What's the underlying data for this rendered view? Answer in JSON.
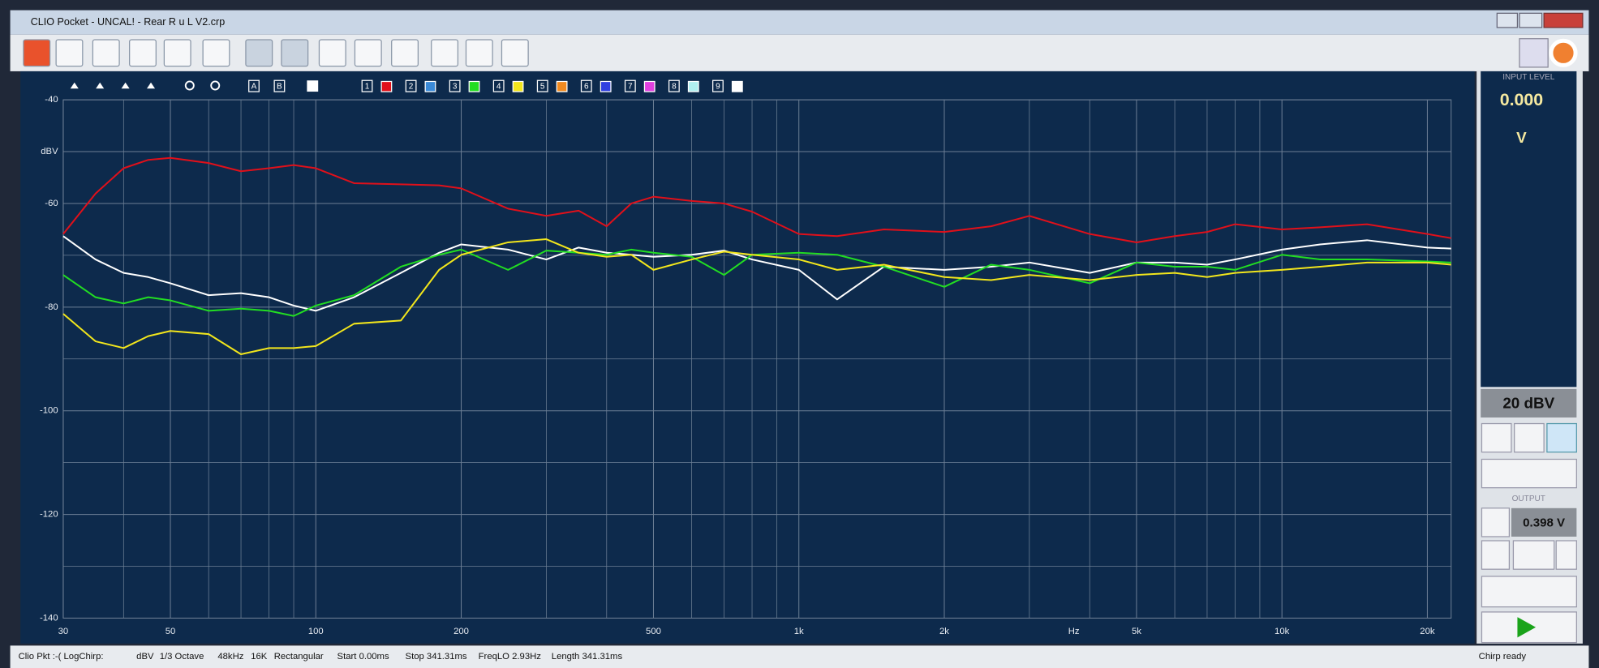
{
  "window_title": "CLIO Pocket - UNCAL! - Rear R u L V2.crp",
  "plot_toolbar": {
    "labels": [
      "A",
      "B"
    ],
    "channels": [
      "1",
      "2",
      "3",
      "4",
      "5",
      "6",
      "7",
      "8",
      "9"
    ]
  },
  "side_panel": {
    "input_label": "INPUT LEVEL",
    "input_value": "0.000",
    "input_unit": "V",
    "range": "20 dBV",
    "output_label": "OUTPUT",
    "output_value": "0.398 V"
  },
  "status_bar": {
    "items": [
      "Clio Pkt :-( LogChirp:",
      "dBV",
      "1/3 Octave",
      "48kHz",
      "16K",
      "Rectangular",
      "Start 0.00ms",
      "Stop 341.31ms",
      "FreqLO 2.93Hz",
      "Length 341.31ms"
    ],
    "state": "Chirp ready"
  },
  "chart_data": {
    "type": "line",
    "x_label": "Hz",
    "log_x": true,
    "grid": true,
    "xlim": [
      30,
      22400
    ],
    "ylim": [
      -140,
      -40
    ],
    "xticks": [
      30,
      50,
      100,
      200,
      500,
      {
        "value": 1000,
        "label": "1k"
      },
      {
        "value": 2000,
        "label": "2k"
      },
      {
        "value": 5000,
        "label": "5k"
      },
      {
        "value": 10000,
        "label": "10k"
      },
      {
        "value": 20000,
        "label": "20k"
      }
    ],
    "xgrid_minor": [
      40,
      60,
      70,
      80,
      90,
      300,
      400,
      600,
      700,
      800,
      900,
      3000,
      4000,
      6000,
      7000,
      8000,
      9000
    ],
    "yticks": [
      -40,
      {
        "value": -50,
        "label": "dBV"
      },
      -60,
      -80,
      -100,
      -120,
      -140
    ],
    "ygrid_minor": [
      -70,
      -90,
      -110,
      -130
    ],
    "x": [
      30,
      35,
      40,
      45,
      50,
      60,
      70,
      80,
      90,
      100,
      120,
      150,
      180,
      200,
      250,
      300,
      350,
      400,
      450,
      500,
      600,
      700,
      800,
      1000,
      1200,
      1500,
      2000,
      2500,
      3000,
      4000,
      5000,
      6000,
      7000,
      8000,
      10000,
      12000,
      15000,
      20000,
      22400
    ],
    "series": [
      {
        "color": "#e0101a",
        "values": [
          -65.9,
          -58.1,
          -53.2,
          -51.6,
          -51.2,
          -52.2,
          -53.8,
          -53.2,
          -52.6,
          -53.2,
          -56.1,
          -56.3,
          -56.5,
          -57.1,
          -61.0,
          -62.4,
          -61.4,
          -64.4,
          -60.0,
          -58.7,
          -59.5,
          -60.0,
          -61.6,
          -65.9,
          -66.3,
          -65.0,
          -65.5,
          -64.4,
          -62.4,
          -65.9,
          -67.5,
          -66.3,
          -65.5,
          -64.0,
          -65.0,
          -64.6,
          -64.0,
          -65.9,
          -66.7
        ]
      },
      {
        "color": "#ffffff",
        "values": [
          -66.3,
          -70.8,
          -73.4,
          -74.2,
          -75.4,
          -77.7,
          -77.3,
          -78.1,
          -79.7,
          -80.7,
          -78.1,
          -73.4,
          -69.5,
          -67.9,
          -68.9,
          -70.8,
          -68.5,
          -69.5,
          -69.9,
          -70.3,
          -69.9,
          -69.1,
          -70.8,
          -72.8,
          -78.5,
          -72.2,
          -72.8,
          -72.2,
          -71.4,
          -73.4,
          -71.4,
          -71.4,
          -71.8,
          -70.8,
          -68.9,
          -67.9,
          -67.1,
          -68.5,
          -68.7
        ]
      },
      {
        "color": "#22dd22",
        "values": [
          -73.8,
          -78.1,
          -79.3,
          -78.1,
          -78.7,
          -80.7,
          -80.3,
          -80.7,
          -81.7,
          -79.7,
          -77.7,
          -72.2,
          -69.9,
          -68.9,
          -72.8,
          -69.1,
          -69.5,
          -69.9,
          -68.9,
          -69.5,
          -70.3,
          -73.8,
          -69.9,
          -69.5,
          -69.9,
          -72.2,
          -76.1,
          -71.8,
          -72.8,
          -75.4,
          -71.4,
          -72.2,
          -72.2,
          -72.8,
          -69.9,
          -70.8,
          -70.8,
          -71.2,
          -71.4
        ]
      },
      {
        "color": "#f2e61c",
        "values": [
          -81.3,
          -86.6,
          -87.9,
          -85.6,
          -84.6,
          -85.2,
          -89.1,
          -87.9,
          -87.9,
          -87.5,
          -83.2,
          -82.6,
          -72.8,
          -69.9,
          -67.5,
          -66.9,
          -69.5,
          -70.3,
          -69.9,
          -72.8,
          -70.8,
          -69.3,
          -69.9,
          -70.8,
          -72.8,
          -71.8,
          -74.2,
          -74.8,
          -73.8,
          -74.8,
          -73.8,
          -73.4,
          -74.2,
          -73.4,
          -72.8,
          -72.2,
          -71.4,
          -71.4,
          -71.8
        ]
      }
    ]
  }
}
